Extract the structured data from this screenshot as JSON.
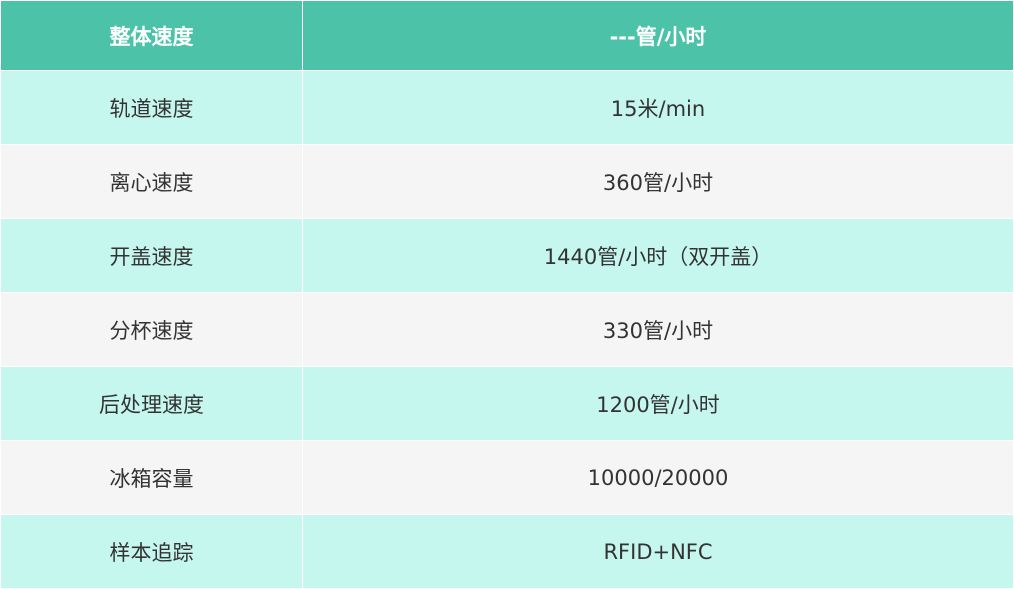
{
  "header": {
    "label": "整体速度",
    "value": "---管/小时"
  },
  "rows": [
    {
      "label": "轨道速度",
      "value": "15米/min"
    },
    {
      "label": "离心速度",
      "value": "360管/小时"
    },
    {
      "label": "开盖速度",
      "value": "1440管/小时（双开盖）"
    },
    {
      "label": "分杯速度",
      "value": "330管/小时"
    },
    {
      "label": "后处理速度",
      "value": "1200管/小时"
    },
    {
      "label": "冰箱容量",
      "value": "10000/20000"
    },
    {
      "label": "样本追踪",
      "value": "RFID+NFC"
    }
  ],
  "colors": {
    "header": "#4CC2A8",
    "row_cyan": "#C6F7EF",
    "row_gray": "#F5F5F5"
  }
}
